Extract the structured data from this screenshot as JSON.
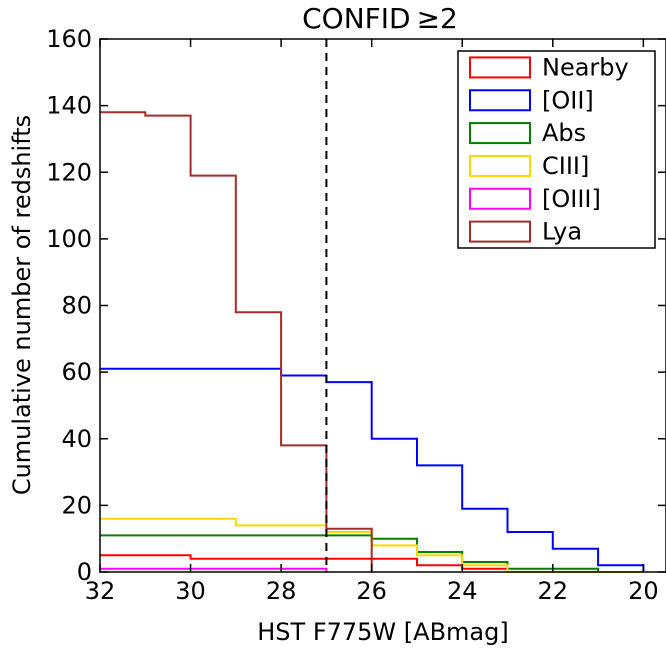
{
  "chart_data": {
    "type": "line",
    "title": "CONFID",
    "title_symbol": "≥2",
    "xlabel": "HST F775W [ABmag]",
    "ylabel": "Cumulative number of redshifts",
    "xlim": [
      32,
      19.5
    ],
    "ylim": [
      0,
      160
    ],
    "xticks": [
      32,
      30,
      28,
      26,
      24,
      22,
      20
    ],
    "yticks": [
      0,
      20,
      40,
      60,
      80,
      100,
      120,
      140,
      160
    ],
    "x_inverted": true,
    "step_style": "post",
    "reference_line": {
      "x": 27,
      "style": "dashed",
      "color": "#000000"
    },
    "legend_position": "top-right",
    "series": [
      {
        "name": "Nearby",
        "color": "#ff0000",
        "x": [
          32,
          31,
          30,
          29,
          28,
          27,
          26,
          25,
          24,
          23,
          22,
          21,
          20
        ],
        "values": [
          5,
          5,
          4,
          4,
          4,
          4,
          4,
          2,
          1,
          0,
          0,
          0,
          0
        ]
      },
      {
        "name": "[OII]",
        "color": "#0000ff",
        "x": [
          32,
          31,
          30,
          29,
          28,
          27,
          26,
          25,
          24,
          23,
          22,
          21,
          20
        ],
        "values": [
          61,
          61,
          61,
          61,
          59,
          57,
          40,
          32,
          19,
          12,
          7,
          2,
          0
        ]
      },
      {
        "name": "Abs",
        "color": "#008000",
        "x": [
          32,
          31,
          30,
          29,
          28,
          27,
          26,
          25,
          24,
          23,
          22,
          21,
          20
        ],
        "values": [
          11,
          11,
          11,
          11,
          11,
          11,
          10,
          6,
          3,
          1,
          1,
          0,
          0
        ]
      },
      {
        "name": "CIII]",
        "color": "#ffd700",
        "x": [
          32,
          31,
          30,
          29,
          28,
          27,
          26,
          25,
          24,
          23,
          22,
          21,
          20
        ],
        "values": [
          16,
          16,
          16,
          14,
          14,
          12,
          8,
          5,
          2,
          0,
          0,
          0,
          0
        ]
      },
      {
        "name": "[OIII]",
        "color": "#ff00ff",
        "x": [
          32,
          31,
          30,
          29,
          28,
          27
        ],
        "values": [
          1,
          1,
          1,
          1,
          1,
          0
        ]
      },
      {
        "name": "Lya",
        "color": "#a52a2a",
        "x": [
          32,
          31,
          30,
          29,
          28,
          27,
          26
        ],
        "values": [
          138,
          137,
          119,
          78,
          38,
          13,
          0
        ]
      }
    ]
  }
}
